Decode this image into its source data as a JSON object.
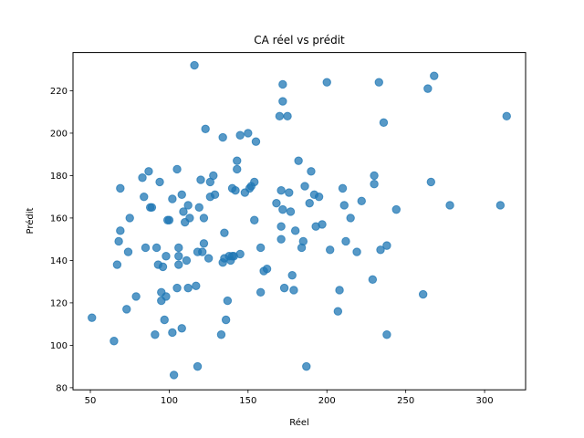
{
  "chart_data": {
    "type": "scatter",
    "title": "CA réel vs prédit",
    "xlabel": "Réel",
    "ylabel": "Prédit",
    "xlim": [
      39,
      326
    ],
    "ylim": [
      79,
      238
    ],
    "xticks": [
      50,
      100,
      150,
      200,
      250,
      300
    ],
    "yticks": [
      80,
      100,
      120,
      140,
      160,
      180,
      200,
      220
    ],
    "grid": false,
    "marker_color": "#1f77b4",
    "marker_alpha": 0.75,
    "points": [
      [
        51,
        113
      ],
      [
        65,
        102
      ],
      [
        67,
        138
      ],
      [
        68,
        149
      ],
      [
        69,
        174
      ],
      [
        69,
        154
      ],
      [
        73,
        117
      ],
      [
        74,
        144
      ],
      [
        75,
        160
      ],
      [
        79,
        123
      ],
      [
        83,
        179
      ],
      [
        84,
        170
      ],
      [
        85,
        146
      ],
      [
        87,
        182
      ],
      [
        88,
        165
      ],
      [
        89,
        165
      ],
      [
        91,
        105
      ],
      [
        92,
        146
      ],
      [
        93,
        138
      ],
      [
        94,
        177
      ],
      [
        95,
        125
      ],
      [
        95,
        121
      ],
      [
        96,
        137
      ],
      [
        97,
        112
      ],
      [
        98,
        142
      ],
      [
        98,
        123
      ],
      [
        99,
        159
      ],
      [
        100,
        159
      ],
      [
        102,
        106
      ],
      [
        102,
        169
      ],
      [
        103,
        86
      ],
      [
        105,
        127
      ],
      [
        105,
        183
      ],
      [
        106,
        146
      ],
      [
        106,
        138
      ],
      [
        106,
        142
      ],
      [
        108,
        171
      ],
      [
        108,
        108
      ],
      [
        109,
        163
      ],
      [
        110,
        158
      ],
      [
        111,
        140
      ],
      [
        112,
        166
      ],
      [
        112,
        127
      ],
      [
        113,
        160
      ],
      [
        116,
        232
      ],
      [
        117,
        128
      ],
      [
        118,
        90
      ],
      [
        118,
        144
      ],
      [
        119,
        165
      ],
      [
        120,
        178
      ],
      [
        121,
        144
      ],
      [
        122,
        148
      ],
      [
        122,
        160
      ],
      [
        123,
        202
      ],
      [
        125,
        141
      ],
      [
        126,
        177
      ],
      [
        126,
        170
      ],
      [
        128,
        180
      ],
      [
        129,
        171
      ],
      [
        133,
        105
      ],
      [
        134,
        139
      ],
      [
        134,
        198
      ],
      [
        135,
        153
      ],
      [
        135,
        141
      ],
      [
        136,
        112
      ],
      [
        137,
        121
      ],
      [
        138,
        142
      ],
      [
        139,
        140
      ],
      [
        140,
        142
      ],
      [
        140,
        174
      ],
      [
        141,
        142
      ],
      [
        142,
        173
      ],
      [
        143,
        187
      ],
      [
        143,
        183
      ],
      [
        145,
        143
      ],
      [
        145,
        199
      ],
      [
        148,
        172
      ],
      [
        150,
        200
      ],
      [
        151,
        174
      ],
      [
        152,
        175
      ],
      [
        154,
        159
      ],
      [
        154,
        177
      ],
      [
        155,
        196
      ],
      [
        158,
        125
      ],
      [
        158,
        146
      ],
      [
        160,
        135
      ],
      [
        162,
        136
      ],
      [
        168,
        167
      ],
      [
        170,
        208
      ],
      [
        171,
        150
      ],
      [
        171,
        156
      ],
      [
        171,
        173
      ],
      [
        172,
        215
      ],
      [
        172,
        223
      ],
      [
        172,
        164
      ],
      [
        173,
        127
      ],
      [
        175,
        208
      ],
      [
        176,
        172
      ],
      [
        177,
        163
      ],
      [
        178,
        133
      ],
      [
        179,
        126
      ],
      [
        180,
        154
      ],
      [
        182,
        187
      ],
      [
        184,
        146
      ],
      [
        185,
        149
      ],
      [
        186,
        175
      ],
      [
        187,
        90
      ],
      [
        189,
        167
      ],
      [
        190,
        182
      ],
      [
        192,
        171
      ],
      [
        193,
        156
      ],
      [
        195,
        170
      ],
      [
        197,
        157
      ],
      [
        200,
        224
      ],
      [
        202,
        145
      ],
      [
        207,
        116
      ],
      [
        208,
        126
      ],
      [
        210,
        174
      ],
      [
        211,
        166
      ],
      [
        212,
        149
      ],
      [
        215,
        160
      ],
      [
        219,
        144
      ],
      [
        222,
        168
      ],
      [
        229,
        131
      ],
      [
        230,
        176
      ],
      [
        230,
        180
      ],
      [
        233,
        224
      ],
      [
        234,
        145
      ],
      [
        236,
        205
      ],
      [
        238,
        147
      ],
      [
        238,
        105
      ],
      [
        244,
        164
      ],
      [
        261,
        124
      ],
      [
        264,
        221
      ],
      [
        266,
        177
      ],
      [
        268,
        227
      ],
      [
        278,
        166
      ],
      [
        310,
        166
      ],
      [
        314,
        208
      ]
    ]
  }
}
